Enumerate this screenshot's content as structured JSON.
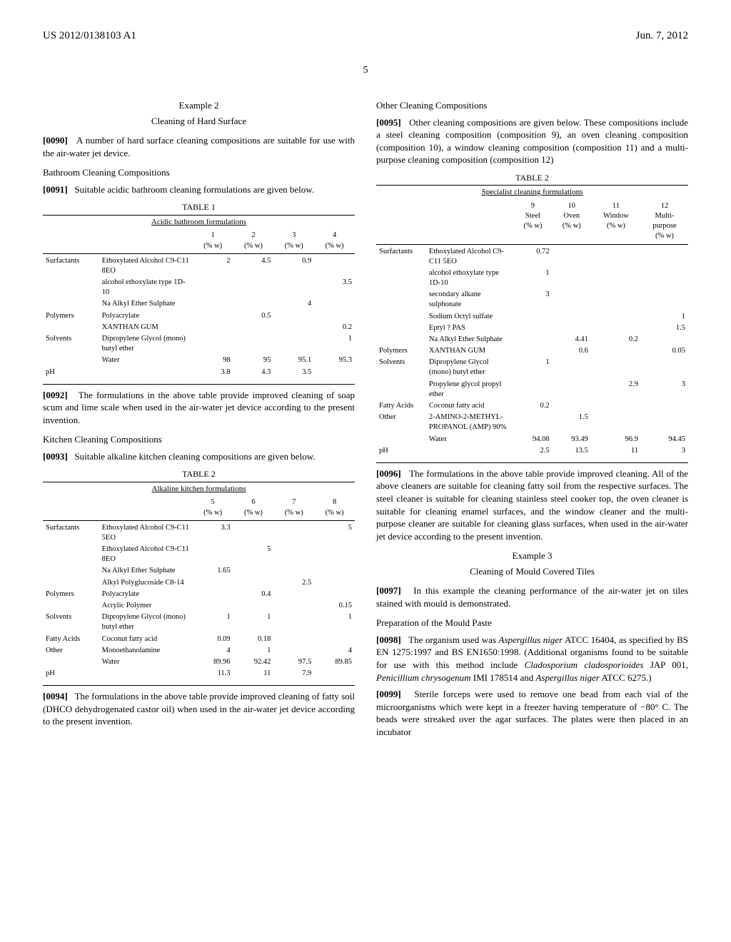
{
  "header": {
    "pub_number": "US 2012/0138103 A1",
    "date": "Jun. 7, 2012"
  },
  "page_number": "5",
  "left": {
    "example2_title": "Example 2",
    "example2_sub": "Cleaning of Hard Surface",
    "p0090_num": "[0090]",
    "p0090": "A number of hard surface cleaning compositions are suitable for use with the air-water jet device.",
    "bathroom_head": "Bathroom Cleaning Compositions",
    "p0091_num": "[0091]",
    "p0091": "Suitable acidic bathroom cleaning formulations are given below.",
    "table1": {
      "caption": "TABLE 1",
      "sub": "Acidic bathroom formulations",
      "col_headers": [
        "",
        "",
        "1\n(% w)",
        "2\n(% w)",
        "3\n(% w)",
        "4\n(% w)"
      ],
      "rows": [
        [
          "Surfactants",
          "Ethoxylated Alcohol C9-C11 8EO",
          "2",
          "4.5",
          "0.9",
          ""
        ],
        [
          "",
          "alcohol ethoxylate type 1D-10",
          "",
          "",
          "",
          "3.5"
        ],
        [
          "",
          "Na Alkyl Ether Sulphate",
          "",
          "",
          "4",
          ""
        ],
        [
          "Polymers",
          "Polyacrylate",
          "",
          "0.5",
          "",
          ""
        ],
        [
          "",
          "XANTHAN GUM",
          "",
          "",
          "",
          "0.2"
        ],
        [
          "Solvents",
          "Dipropylene Glycol (mono) butyl ether",
          "",
          "",
          "",
          "1"
        ],
        [
          "",
          "Water",
          "98",
          "95",
          "95.1",
          "95.3"
        ],
        [
          "pH",
          "",
          "3.8",
          "4.3",
          "3.5",
          ""
        ]
      ]
    },
    "p0092_num": "[0092]",
    "p0092": "The formulations in the above table provide improved cleaning of soap scum and lime scale when used in the air-water jet device according to the present invention.",
    "kitchen_head": "Kitchen Cleaning Compositions",
    "p0093_num": "[0093]",
    "p0093": "Suitable alkaline kitchen cleaning compositions are given below.",
    "table2": {
      "caption": "TABLE 2",
      "sub": "Alkaline kitchen formulations",
      "col_headers": [
        "",
        "",
        "5\n(% w)",
        "6\n(% w)",
        "7\n(% w)",
        "8\n(% w)"
      ],
      "rows": [
        [
          "Surfactants",
          "Ethoxylated Alcohol C9-C11 5EO",
          "3.3",
          "",
          "",
          "5"
        ],
        [
          "",
          "Ethoxylated Alcohol C9-C11 8EO",
          "",
          "5",
          "",
          ""
        ],
        [
          "",
          "Na Alkyl Ether Sulphate",
          "1.65",
          "",
          "",
          ""
        ],
        [
          "",
          "Alkyl Polyglucoside C8-14",
          "",
          "",
          "2.5",
          ""
        ],
        [
          "Polymers",
          "Polyacrylate",
          "",
          "0.4",
          "",
          ""
        ],
        [
          "",
          "Acrylic Polymer",
          "",
          "",
          "",
          "0.15"
        ],
        [
          "Solvents",
          "Dipropylene Glycol (mono) butyl ether",
          "1",
          "1",
          "",
          "1"
        ],
        [
          "Fatty Acids",
          "Coconut fatty acid",
          "0.09",
          "0.18",
          "",
          ""
        ],
        [
          "Other",
          "Monoethanolamine",
          "4",
          "1",
          "",
          "4"
        ],
        [
          "",
          "Water",
          "89.96",
          "92.42",
          "97.5",
          "89.85"
        ],
        [
          "pH",
          "",
          "11.3",
          "11",
          "7.9",
          ""
        ]
      ]
    },
    "p0094_num": "[0094]",
    "p0094": "The formulations in the above table provide improved cleaning of fatty soil (DHCO dehydrogenated castor oil) when used in the air-water jet device according to the present invention."
  },
  "right": {
    "other_head": "Other Cleaning Compositions",
    "p0095_num": "[0095]",
    "p0095": "Other cleaning compositions are given below. These compositions include a steel cleaning composition (composition 9), an oven cleaning composition (composition 10), a window cleaning composition (composition 11) and a multi-purpose cleaning composition (composition 12)",
    "table2b": {
      "caption": "TABLE 2",
      "sub": "Specialist cleaning formulations",
      "col_headers": [
        "",
        "",
        "9\nSteel\n(% w)",
        "10\nOven\n(% w)",
        "11\nWindow\n(% w)",
        "12\nMulti-\npurpose\n(% w)"
      ],
      "rows": [
        [
          "Surfactants",
          "Ethoxylated Alcohol C9-C11 5EO",
          "0.72",
          "",
          "",
          ""
        ],
        [
          "",
          "alcohol ethoxylate type 1D-10",
          "1",
          "",
          "",
          ""
        ],
        [
          "",
          "secondary alkane sulphonate",
          "3",
          "",
          "",
          ""
        ],
        [
          "",
          "Sodium Octyl sulfate",
          "",
          "",
          "",
          "1"
        ],
        [
          "",
          "Eptyl ? PAS",
          "",
          "",
          "",
          "1.5"
        ],
        [
          "",
          "Na Alkyl Ether Sulphate",
          "",
          "4.41",
          "0.2",
          ""
        ],
        [
          "Polymers",
          "XANTHAN GUM",
          "",
          "0.6",
          "",
          "0.05"
        ],
        [
          "Solvents",
          "Dipropylene Glycol (mono) butyl ether",
          "1",
          "",
          "",
          ""
        ],
        [
          "",
          "Propylene glycol propyl ether",
          "",
          "",
          "2.9",
          "3"
        ],
        [
          "Fatty Acids",
          "Coconut fatty acid",
          "0.2",
          "",
          "",
          ""
        ],
        [
          "Other",
          "2-AMINO-2-METHYL-PROPANOL (AMP) 90%",
          "",
          "1.5",
          "",
          ""
        ],
        [
          "",
          "Water",
          "94.08",
          "93.49",
          "96.9",
          "94.45"
        ],
        [
          "pH",
          "",
          "2.5",
          "13.5",
          "11",
          "3"
        ]
      ]
    },
    "p0096_num": "[0096]",
    "p0096": "The formulations in the above table provide improved cleaning. All of the above cleaners are suitable for cleaning fatty soil from the respective surfaces. The steel cleaner is suitable for cleaning stainless steel cooker top, the oven cleaner is suitable for cleaning enamel surfaces, and the window cleaner and the multi-purpose cleaner are suitable for cleaning glass surfaces, when used in the air-water jet device according to the present invention.",
    "example3_title": "Example 3",
    "example3_sub": "Cleaning of Mould Covered Tiles",
    "p0097_num": "[0097]",
    "p0097": "In this example the cleaning performance of the air-water jet on tiles stained with mould is demonstrated.",
    "prep_head": "Preparation of the Mould Paste",
    "p0098_num": "[0098]",
    "p0098_a": "The organism used was ",
    "p0098_b": "Aspergillus niger",
    "p0098_c": " ATCC 16404, as specified by BS EN 1275:1997 and BS EN1650:1998. (Additional organisms found to be suitable for use with this method include ",
    "p0098_d": "Cladosporium cladosporioides",
    "p0098_e": " JAP 001, ",
    "p0098_f": "Penicillium chrysogenum",
    "p0098_g": " IMI 178514 and ",
    "p0098_h": "Aspergillus niger",
    "p0098_i": " ATCC 6275.)",
    "p0099_num": "[0099]",
    "p0099": "Sterile forceps were used to remove one bead from each vial of the microorganisms which were kept in a freezer having temperature of −80° C. The beads were streaked over the agar surfaces. The plates were then placed in an incubator"
  }
}
